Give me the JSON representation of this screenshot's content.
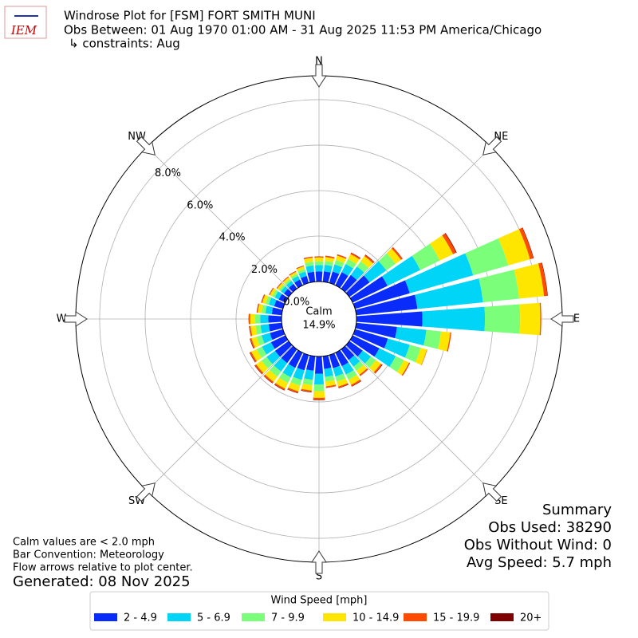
{
  "chart_data": {
    "type": "windrose",
    "title": "Windrose Plot for [FSM] FORT SMITH MUNI",
    "subtitle": "Obs Between: 01 Aug 1970 01:00 AM - 31 Aug 2025 11:53 PM America/Chicago",
    "constraints": "↳ constraints: Aug",
    "logo_text": "IEM",
    "directions": [
      0,
      10,
      20,
      30,
      40,
      50,
      60,
      70,
      80,
      90,
      100,
      110,
      120,
      130,
      140,
      150,
      160,
      170,
      180,
      190,
      200,
      210,
      220,
      230,
      240,
      250,
      260,
      270,
      280,
      290,
      300,
      310,
      320,
      330,
      340,
      350
    ],
    "legend_title": "Wind Speed [mph]",
    "series": [
      {
        "name": "2 - 4.9",
        "color": "#0a2cfb",
        "values": [
          0.44,
          0.46,
          0.52,
          0.64,
          0.74,
          1.1,
          1.7,
          2.5,
          2.7,
          2.9,
          1.8,
          1.5,
          1.3,
          0.72,
          0.58,
          0.66,
          0.6,
          0.56,
          0.76,
          0.64,
          0.7,
          0.74,
          0.74,
          0.74,
          0.7,
          0.6,
          0.58,
          0.58,
          0.44,
          0.4,
          0.32,
          0.26,
          0.26,
          0.28,
          0.32,
          0.44
        ]
      },
      {
        "name": "5 - 6.9",
        "color": "#00d4f7",
        "values": [
          0.28,
          0.29,
          0.33,
          0.4,
          0.46,
          0.9,
          1.6,
          2.9,
          2.9,
          2.75,
          1.3,
          1.0,
          0.8,
          0.45,
          0.36,
          0.41,
          0.38,
          0.35,
          0.48,
          0.4,
          0.44,
          0.46,
          0.46,
          0.46,
          0.44,
          0.38,
          0.36,
          0.36,
          0.28,
          0.25,
          0.2,
          0.16,
          0.16,
          0.18,
          0.2,
          0.28
        ]
      },
      {
        "name": "7 - 9.9",
        "color": "#7bff7b",
        "values": [
          0.17,
          0.17,
          0.2,
          0.24,
          0.28,
          0.5,
          0.95,
          1.6,
          1.6,
          1.55,
          0.65,
          0.5,
          0.4,
          0.27,
          0.22,
          0.25,
          0.23,
          0.21,
          0.29,
          0.24,
          0.26,
          0.28,
          0.28,
          0.28,
          0.26,
          0.23,
          0.22,
          0.22,
          0.17,
          0.15,
          0.12,
          0.1,
          0.1,
          0.1,
          0.12,
          0.17
        ]
      },
      {
        "name": "10 - 14.9",
        "color": "#ffe600",
        "values": [
          0.17,
          0.17,
          0.2,
          0.24,
          0.28,
          0.3,
          0.65,
          1.0,
          1.1,
          0.88,
          0.4,
          0.28,
          0.25,
          0.27,
          0.22,
          0.25,
          0.23,
          0.21,
          0.29,
          0.24,
          0.26,
          0.28,
          0.28,
          0.28,
          0.26,
          0.23,
          0.22,
          0.22,
          0.17,
          0.15,
          0.12,
          0.1,
          0.1,
          0.1,
          0.12,
          0.17
        ]
      },
      {
        "name": "15 - 19.9",
        "color": "#ff4a00",
        "values": [
          0.04,
          0.05,
          0.05,
          0.06,
          0.07,
          0.08,
          0.15,
          0.15,
          0.15,
          0.05,
          0.05,
          0.02,
          0.04,
          0.07,
          0.06,
          0.07,
          0.06,
          0.06,
          0.08,
          0.06,
          0.07,
          0.07,
          0.07,
          0.07,
          0.07,
          0.06,
          0.06,
          0.06,
          0.04,
          0.04,
          0.03,
          0.03,
          0.03,
          0.03,
          0.03,
          0.04
        ]
      },
      {
        "name": "20+",
        "color": "#7f0000",
        "values": [
          0.01,
          0.01,
          0.01,
          0.02,
          0.02,
          0.01,
          0.03,
          0.02,
          0.02,
          0,
          0,
          0,
          0.01,
          0.02,
          0.01,
          0.02,
          0.02,
          0.01,
          0.02,
          0.02,
          0.02,
          0.02,
          0.02,
          0.02,
          0.02,
          0.02,
          0.01,
          0.01,
          0.01,
          0.01,
          0.01,
          0.01,
          0.01,
          0.01,
          0.01,
          0.01
        ]
      }
    ],
    "ylim": [
      0,
      9.05
    ],
    "yticks": [
      {
        "value": 0,
        "label": "0.0%"
      },
      {
        "value": 2,
        "label": "2.0%"
      },
      {
        "value": 4,
        "label": "4.0%"
      },
      {
        "value": 6,
        "label": "6.0%"
      },
      {
        "value": 8,
        "label": "8.0%"
      }
    ],
    "xticks": [
      {
        "value": 0,
        "label": "N"
      },
      {
        "value": 45,
        "label": "NE"
      },
      {
        "value": 90,
        "label": "E"
      },
      {
        "value": 135,
        "label": "SE"
      },
      {
        "value": 180,
        "label": "S"
      },
      {
        "value": 225,
        "label": "SW"
      },
      {
        "value": 270,
        "label": "W"
      },
      {
        "value": 315,
        "label": "NW"
      }
    ],
    "grid": true,
    "calm": {
      "label": "Calm",
      "value": 14.9,
      "value_label": "14.9%"
    },
    "summary": [
      "Summary",
      "Obs Used: 38290",
      "Obs Without Wind: 0",
      "Avg Speed: 5.7 mph"
    ],
    "notes": [
      "Calm values are < 2.0 mph",
      "Bar Convention: Meteorology",
      "Flow arrows relative to plot center."
    ],
    "generated": "Generated: 08 Nov 2025"
  }
}
